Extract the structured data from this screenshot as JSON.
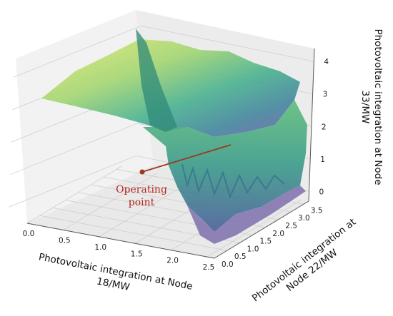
{
  "chart_data": {
    "type": "surface3d",
    "title": "",
    "xlabel_lines": [
      "Photovoltaic integration at Node",
      "18/MW"
    ],
    "ylabel_lines": [
      "Photovoltaic integration at",
      "Node 22/MW"
    ],
    "zlabel_lines": [
      "Photovoltaic integration at Node",
      "33/MW"
    ],
    "x_ticks": [
      "0.0",
      "0.5",
      "1.0",
      "1.5",
      "2.0",
      "2.5"
    ],
    "y_ticks": [
      "0.0",
      "0.5",
      "1.0",
      "1.5",
      "2.0",
      "2.5",
      "3.0",
      "3.5"
    ],
    "z_ticks": [
      "0",
      "1",
      "2",
      "3",
      "4"
    ],
    "xlim": [
      0,
      2.6
    ],
    "ylim": [
      0,
      3.7
    ],
    "zlim": [
      -0.3,
      4.4
    ],
    "colormap": "viridis",
    "annotation": {
      "text_lines": [
        "Operating",
        "point"
      ],
      "x": 1.0,
      "y": 3.0,
      "z": 0.6
    }
  }
}
